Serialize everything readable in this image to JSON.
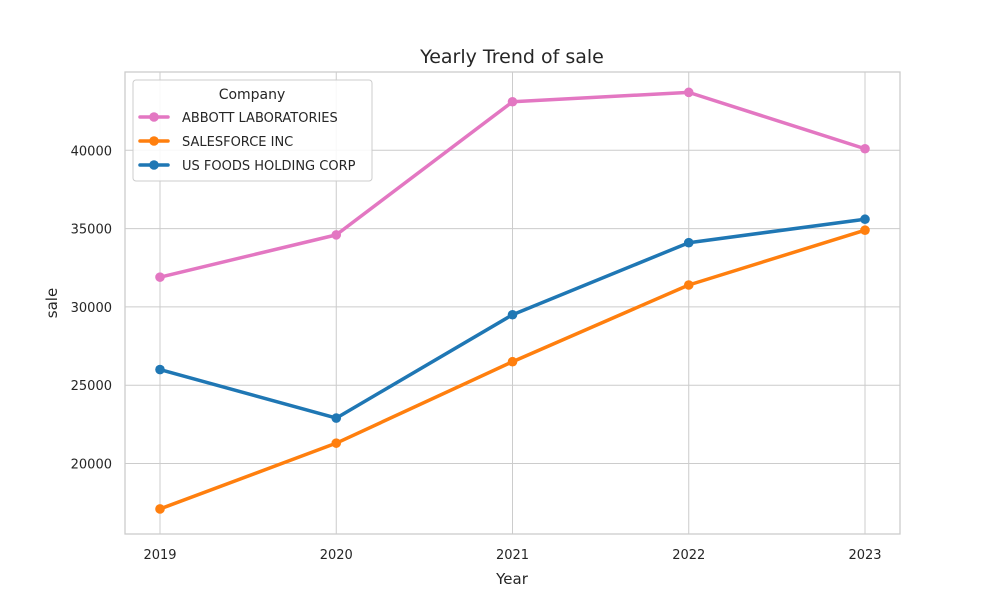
{
  "chart_data": {
    "type": "line",
    "title": "Yearly Trend of sale",
    "xlabel": "Year",
    "ylabel": "sale",
    "x": [
      "2019",
      "2020",
      "2021",
      "2022",
      "2023"
    ],
    "ylim": [
      15500,
      45000
    ],
    "yticks": [
      20000,
      25000,
      30000,
      35000,
      40000
    ],
    "grid": true,
    "legend": {
      "title": "Company",
      "placement": "top-left"
    },
    "series": [
      {
        "name": "ABBOTT LABORATORIES",
        "color": "#e377c2",
        "values": [
          31900,
          34600,
          43100,
          43700,
          40100
        ]
      },
      {
        "name": "SALESFORCE INC",
        "color": "#ff7f0e",
        "values": [
          17100,
          21300,
          26500,
          31400,
          34900
        ]
      },
      {
        "name": "US FOODS HOLDING CORP",
        "color": "#1f77b4",
        "values": [
          26000,
          22900,
          29500,
          34100,
          35600
        ]
      }
    ]
  }
}
